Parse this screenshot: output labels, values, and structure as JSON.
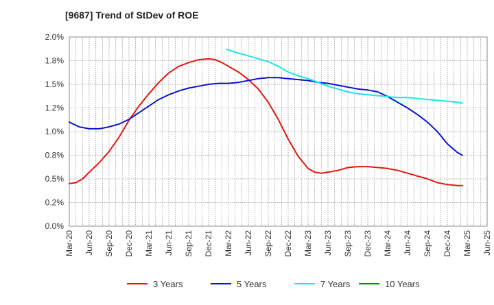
{
  "chart_data": {
    "type": "line",
    "title": "[9687]  Trend of StDev of ROE",
    "xlabel": "",
    "ylabel": "",
    "ylim": [
      0,
      2.0
    ],
    "y_ticks": [
      "0.0%",
      "0.2%",
      "0.5%",
      "0.8%",
      "1.0%",
      "1.2%",
      "1.5%",
      "1.8%",
      "2.0%"
    ],
    "categories": [
      "Mar-20",
      "Jun-20",
      "Sep-20",
      "Dec-20",
      "Mar-21",
      "Jun-21",
      "Sep-21",
      "Dec-21",
      "Mar-22",
      "Jun-22",
      "Sep-22",
      "Dec-22",
      "Mar-23",
      "Jun-23",
      "Sep-23",
      "Dec-23",
      "Mar-24",
      "Jun-24",
      "Sep-24",
      "Dec-24",
      "Mar-25",
      "Jun-25"
    ],
    "grid": true,
    "legend_position": "bottom",
    "series": [
      {
        "name": "3 Years",
        "color": "#e8140c",
        "points": [
          {
            "x": 0.0,
            "y": 0.45
          },
          {
            "x": 0.33,
            "y": 0.46
          },
          {
            "x": 0.67,
            "y": 0.5
          },
          {
            "x": 1.0,
            "y": 0.57
          },
          {
            "x": 1.5,
            "y": 0.67
          },
          {
            "x": 2.0,
            "y": 0.79
          },
          {
            "x": 2.5,
            "y": 0.94
          },
          {
            "x": 3.0,
            "y": 1.12
          },
          {
            "x": 3.5,
            "y": 1.27
          },
          {
            "x": 4.0,
            "y": 1.4
          },
          {
            "x": 4.5,
            "y": 1.52
          },
          {
            "x": 5.0,
            "y": 1.62
          },
          {
            "x": 5.5,
            "y": 1.69
          },
          {
            "x": 6.0,
            "y": 1.73
          },
          {
            "x": 6.5,
            "y": 1.76
          },
          {
            "x": 7.0,
            "y": 1.77
          },
          {
            "x": 7.33,
            "y": 1.76
          },
          {
            "x": 7.67,
            "y": 1.73
          },
          {
            "x": 8.0,
            "y": 1.69
          },
          {
            "x": 8.5,
            "y": 1.63
          },
          {
            "x": 9.0,
            "y": 1.55
          },
          {
            "x": 9.5,
            "y": 1.45
          },
          {
            "x": 10.0,
            "y": 1.31
          },
          {
            "x": 10.5,
            "y": 1.13
          },
          {
            "x": 11.0,
            "y": 0.92
          },
          {
            "x": 11.5,
            "y": 0.74
          },
          {
            "x": 12.0,
            "y": 0.61
          },
          {
            "x": 12.33,
            "y": 0.57
          },
          {
            "x": 12.67,
            "y": 0.56
          },
          {
            "x": 13.0,
            "y": 0.57
          },
          {
            "x": 13.5,
            "y": 0.59
          },
          {
            "x": 14.0,
            "y": 0.62
          },
          {
            "x": 14.5,
            "y": 0.63
          },
          {
            "x": 15.0,
            "y": 0.63
          },
          {
            "x": 15.5,
            "y": 0.62
          },
          {
            "x": 16.0,
            "y": 0.61
          },
          {
            "x": 16.5,
            "y": 0.59
          },
          {
            "x": 17.0,
            "y": 0.56
          },
          {
            "x": 17.5,
            "y": 0.53
          },
          {
            "x": 18.0,
            "y": 0.5
          },
          {
            "x": 18.5,
            "y": 0.46
          },
          {
            "x": 19.0,
            "y": 0.44
          },
          {
            "x": 19.5,
            "y": 0.43
          },
          {
            "x": 19.75,
            "y": 0.43
          }
        ]
      },
      {
        "name": "5 Years",
        "color": "#0a14c8",
        "points": [
          {
            "x": 0.0,
            "y": 1.1
          },
          {
            "x": 0.5,
            "y": 1.05
          },
          {
            "x": 1.0,
            "y": 1.03
          },
          {
            "x": 1.5,
            "y": 1.03
          },
          {
            "x": 2.0,
            "y": 1.05
          },
          {
            "x": 2.5,
            "y": 1.08
          },
          {
            "x": 3.0,
            "y": 1.13
          },
          {
            "x": 3.5,
            "y": 1.2
          },
          {
            "x": 4.0,
            "y": 1.27
          },
          {
            "x": 4.5,
            "y": 1.34
          },
          {
            "x": 5.0,
            "y": 1.39
          },
          {
            "x": 5.5,
            "y": 1.43
          },
          {
            "x": 6.0,
            "y": 1.46
          },
          {
            "x": 6.5,
            "y": 1.48
          },
          {
            "x": 7.0,
            "y": 1.5
          },
          {
            "x": 7.5,
            "y": 1.51
          },
          {
            "x": 8.0,
            "y": 1.51
          },
          {
            "x": 8.5,
            "y": 1.52
          },
          {
            "x": 9.0,
            "y": 1.54
          },
          {
            "x": 9.5,
            "y": 1.56
          },
          {
            "x": 10.0,
            "y": 1.57
          },
          {
            "x": 10.5,
            "y": 1.57
          },
          {
            "x": 11.0,
            "y": 1.56
          },
          {
            "x": 11.5,
            "y": 1.55
          },
          {
            "x": 12.0,
            "y": 1.54
          },
          {
            "x": 12.5,
            "y": 1.52
          },
          {
            "x": 13.0,
            "y": 1.51
          },
          {
            "x": 13.5,
            "y": 1.49
          },
          {
            "x": 14.0,
            "y": 1.47
          },
          {
            "x": 14.5,
            "y": 1.45
          },
          {
            "x": 15.0,
            "y": 1.44
          },
          {
            "x": 15.5,
            "y": 1.42
          },
          {
            "x": 16.0,
            "y": 1.37
          },
          {
            "x": 16.5,
            "y": 1.31
          },
          {
            "x": 17.0,
            "y": 1.25
          },
          {
            "x": 17.5,
            "y": 1.18
          },
          {
            "x": 18.0,
            "y": 1.1
          },
          {
            "x": 18.5,
            "y": 1.0
          },
          {
            "x": 19.0,
            "y": 0.87
          },
          {
            "x": 19.5,
            "y": 0.78
          },
          {
            "x": 19.75,
            "y": 0.75
          }
        ]
      },
      {
        "name": "7 Years",
        "color": "#19e6e6",
        "points": [
          {
            "x": 7.9,
            "y": 1.87
          },
          {
            "x": 8.5,
            "y": 1.83
          },
          {
            "x": 9.0,
            "y": 1.8
          },
          {
            "x": 9.5,
            "y": 1.77
          },
          {
            "x": 10.0,
            "y": 1.74
          },
          {
            "x": 10.5,
            "y": 1.69
          },
          {
            "x": 11.0,
            "y": 1.63
          },
          {
            "x": 11.5,
            "y": 1.59
          },
          {
            "x": 12.0,
            "y": 1.56
          },
          {
            "x": 12.5,
            "y": 1.52
          },
          {
            "x": 13.0,
            "y": 1.48
          },
          {
            "x": 13.5,
            "y": 1.45
          },
          {
            "x": 14.0,
            "y": 1.42
          },
          {
            "x": 14.5,
            "y": 1.4
          },
          {
            "x": 15.0,
            "y": 1.39
          },
          {
            "x": 15.5,
            "y": 1.38
          },
          {
            "x": 16.0,
            "y": 1.37
          },
          {
            "x": 16.5,
            "y": 1.36
          },
          {
            "x": 17.0,
            "y": 1.36
          },
          {
            "x": 17.5,
            "y": 1.35
          },
          {
            "x": 18.0,
            "y": 1.34
          },
          {
            "x": 18.5,
            "y": 1.33
          },
          {
            "x": 19.0,
            "y": 1.32
          },
          {
            "x": 19.5,
            "y": 1.31
          },
          {
            "x": 19.75,
            "y": 1.3
          }
        ]
      },
      {
        "name": "10 Years",
        "color": "#0f8a0f",
        "points": []
      }
    ]
  }
}
